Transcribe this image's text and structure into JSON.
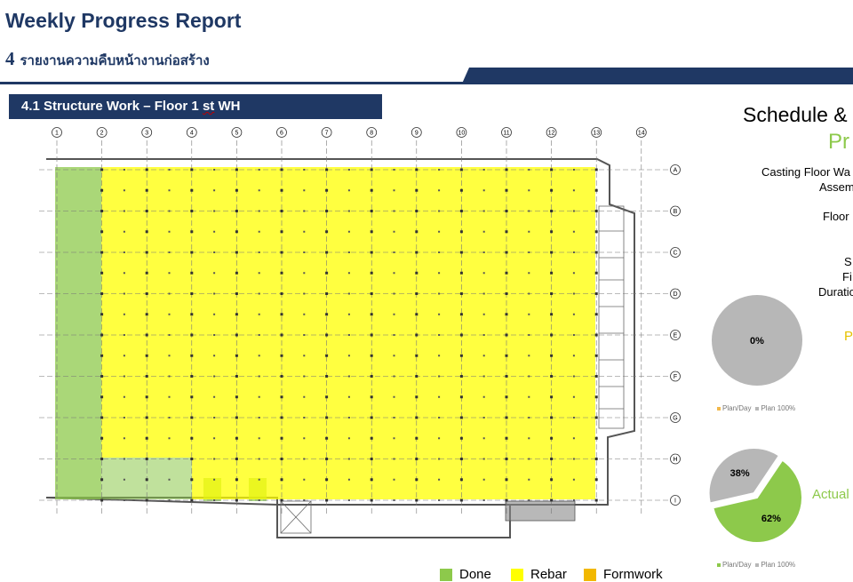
{
  "header": {
    "title": "Weekly Progress Report",
    "section_number": "4",
    "section_thai": "รายงานความคืบหน้างานก่อสร้าง"
  },
  "subheader": {
    "prefix": "4.1 Structure Work – Floor 1 ",
    "st": "st",
    "suffix": " WH"
  },
  "grid": {
    "columns": [
      "1",
      "2",
      "3",
      "4",
      "5",
      "6",
      "7",
      "8",
      "9",
      "10",
      "11",
      "12",
      "13",
      "14"
    ],
    "rows": [
      "A",
      "B",
      "C",
      "D",
      "E",
      "F",
      "G",
      "H",
      "I"
    ]
  },
  "schedule": {
    "title": "Schedule &",
    "subtitle": "Pr",
    "casting_line1": "Casting Floor Wa",
    "casting_line2": "Assem",
    "floor": "Floor",
    "s": "S",
    "fi": "Fi",
    "duration": "Duratio",
    "plan_label": "P",
    "actual_label": "Actual"
  },
  "chart_data": [
    {
      "type": "pie",
      "slices": [
        {
          "name": "Plan/Day",
          "value": 0,
          "label": "0%",
          "color": "#f4b183"
        },
        {
          "name": "Plan 100%",
          "value": 100,
          "label": "",
          "color": "#b7b7b7"
        }
      ],
      "center_label": "0%",
      "legend": [
        "Plan/Day",
        "Plan 100%"
      ],
      "legend_colors": [
        "#f2b84b",
        "#b7b7b7"
      ]
    },
    {
      "type": "pie",
      "slices": [
        {
          "name": "Plan/Day",
          "value": 62,
          "label": "62%",
          "color": "#8dc94b"
        },
        {
          "name": "Plan 100%",
          "value": 38,
          "label": "38%",
          "color": "#b7b7b7"
        }
      ],
      "legend": [
        "Plan/Day",
        "Plan 100%"
      ],
      "legend_colors": [
        "#8dc94b",
        "#b7b7b7"
      ]
    }
  ],
  "legend": [
    {
      "label": "Done",
      "color": "#8dc94b"
    },
    {
      "label": "Rebar",
      "color": "#ffff00"
    },
    {
      "label": "Formwork",
      "color": "#f2b800"
    }
  ]
}
